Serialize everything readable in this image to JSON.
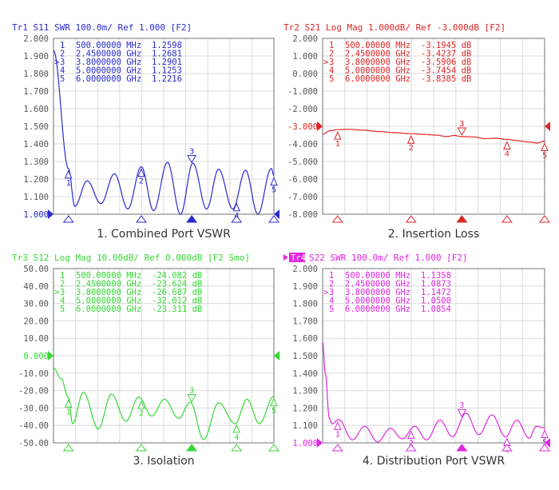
{
  "chart_data": [
    {
      "type": "line",
      "header": "Tr1 S11 SWR 100.0m/ Ref 1.000 [F2]",
      "trace_tag": "",
      "caption": "1.   Combined Port VSWR",
      "color": "#2a2ad0",
      "x_unit": "GHz",
      "xlim": [
        0.1,
        6.0
      ],
      "ylim": [
        1.0,
        2.0
      ],
      "ref_value": 1.0,
      "y_ticks": [
        "2.000",
        "1.900",
        "1.800",
        "1.700",
        "1.600",
        "1.500",
        "1.400",
        "1.300",
        "1.200",
        "1.100",
        "1.000"
      ],
      "highlight_tick": 10,
      "active_marker": 3,
      "markers": [
        {
          "n": "1",
          "freq": 0.5,
          "freq_label": "500.00000 MHz",
          "value_label": "1.2598"
        },
        {
          "n": "2",
          "freq": 2.45,
          "freq_label": "2.4500000 GHz",
          "value_label": "1.2681"
        },
        {
          "n": "3",
          "freq": 3.8,
          "freq_label": "3.8000000 GHz",
          "value_label": "1.2901"
        },
        {
          "n": "4",
          "freq": 5.0,
          "freq_label": "5.0000000 GHz",
          "value_label": "1.1253"
        },
        {
          "n": "5",
          "freq": 6.0,
          "freq_label": "6.0000000 GHz",
          "value_label": "1.2216"
        }
      ],
      "trace": [
        [
          0.1,
          1.93
        ],
        [
          0.5,
          1.26
        ],
        [
          0.67,
          1.045
        ],
        [
          1.0,
          1.19
        ],
        [
          1.37,
          1.06
        ],
        [
          1.73,
          1.23
        ],
        [
          2.09,
          1.03
        ],
        [
          2.45,
          1.27
        ],
        [
          2.78,
          1.02
        ],
        [
          3.15,
          1.295
        ],
        [
          3.5,
          1.0
        ],
        [
          3.83,
          1.29
        ],
        [
          4.2,
          1.03
        ],
        [
          4.52,
          1.256
        ],
        [
          4.9,
          1.03
        ],
        [
          5.24,
          1.25
        ],
        [
          5.57,
          1.0
        ],
        [
          5.93,
          1.26
        ],
        [
          6.0,
          1.22
        ]
      ]
    },
    {
      "type": "line",
      "header": "Tr2 S21 Log Mag 1.000dB/ Ref -3.000dB [F2]",
      "trace_tag": "",
      "caption": "2. Insertion Loss",
      "color": "#e02424",
      "x_unit": "GHz",
      "xlim": [
        0.1,
        6.0
      ],
      "ylim": [
        -8.0,
        2.0
      ],
      "ref_value": -3.0,
      "y_ticks": [
        "2.000",
        "1.000",
        "0.000",
        "-1.000",
        "-2.000",
        "-3.000",
        "-4.000",
        "-5.000",
        "-6.000",
        "-7.000",
        "-8.000"
      ],
      "highlight_tick": 5,
      "active_marker": 3,
      "markers": [
        {
          "n": "1",
          "freq": 0.5,
          "freq_label": "500.00000 MHz",
          "value_label": "-3.1945 dB"
        },
        {
          "n": "2",
          "freq": 2.45,
          "freq_label": "2.4500000 GHz",
          "value_label": "-3.4237 dB"
        },
        {
          "n": "3",
          "freq": 3.8,
          "freq_label": "3.8000000 GHz",
          "value_label": "-3.5906 dB"
        },
        {
          "n": "4",
          "freq": 5.0,
          "freq_label": "5.0000000 GHz",
          "value_label": "-3.7454 dB"
        },
        {
          "n": "5",
          "freq": 6.0,
          "freq_label": "6.0000000 GHz",
          "value_label": "-3.8385 dB"
        }
      ],
      "trace": [
        [
          0.1,
          -3.45
        ],
        [
          0.3,
          -3.25
        ],
        [
          0.5,
          -3.19
        ],
        [
          0.8,
          -3.17
        ],
        [
          1.2,
          -3.22
        ],
        [
          1.6,
          -3.3
        ],
        [
          2.0,
          -3.36
        ],
        [
          2.45,
          -3.42
        ],
        [
          2.8,
          -3.46
        ],
        [
          3.1,
          -3.5
        ],
        [
          3.4,
          -3.58
        ],
        [
          3.6,
          -3.52
        ],
        [
          3.8,
          -3.59
        ],
        [
          4.1,
          -3.6
        ],
        [
          4.4,
          -3.7
        ],
        [
          4.7,
          -3.68
        ],
        [
          5.0,
          -3.75
        ],
        [
          5.3,
          -3.82
        ],
        [
          5.6,
          -3.9
        ],
        [
          5.8,
          -3.95
        ],
        [
          6.0,
          -3.84
        ]
      ]
    },
    {
      "type": "line",
      "header": "Tr3 S12 Log Mag 10.00dB/ Ref 0.000dB [F2 Smo]",
      "trace_tag": "",
      "caption": "3. Isolation",
      "color": "#34d834",
      "x_unit": "GHz",
      "xlim": [
        0.1,
        6.0
      ],
      "ylim": [
        -50,
        50
      ],
      "ref_value": 0,
      "y_ticks": [
        "50.00",
        "40.00",
        "30.00",
        "20.00",
        "10.00",
        "0.000",
        "-10.00",
        "-20.00",
        "-30.00",
        "-40.00",
        "-50.00"
      ],
      "highlight_tick": 5,
      "active_marker": 3,
      "markers": [
        {
          "n": "1",
          "freq": 0.5,
          "freq_label": "500.00000 MHz",
          "value_label": "-24.082 dB"
        },
        {
          "n": "2",
          "freq": 2.45,
          "freq_label": "2.4500000 GHz",
          "value_label": "-23.624 dB"
        },
        {
          "n": "3",
          "freq": 3.8,
          "freq_label": "3.8000000 GHz",
          "value_label": "-26.687 dB"
        },
        {
          "n": "4",
          "freq": 5.0,
          "freq_label": "5.0000000 GHz",
          "value_label": "-32.012 dB"
        },
        {
          "n": "5",
          "freq": 6.0,
          "freq_label": "6.0000000 GHz",
          "value_label": "-23.311 dB"
        }
      ],
      "trace": [
        [
          0.1,
          -7
        ],
        [
          0.3,
          -13
        ],
        [
          0.5,
          -24
        ],
        [
          0.61,
          -39
        ],
        [
          0.9,
          -21
        ],
        [
          1.3,
          -42
        ],
        [
          1.65,
          -22
        ],
        [
          2.04,
          -37.6
        ],
        [
          2.38,
          -23.7
        ],
        [
          2.73,
          -34.6
        ],
        [
          3.07,
          -25
        ],
        [
          3.45,
          -36
        ],
        [
          3.76,
          -26.7
        ],
        [
          4.12,
          -48
        ],
        [
          4.52,
          -27
        ],
        [
          4.96,
          -39
        ],
        [
          5.28,
          -25
        ],
        [
          5.61,
          -39
        ],
        [
          6.0,
          -23.3
        ]
      ]
    },
    {
      "type": "line",
      "header": "S22 SWR 100.0m/ Ref 1.000 [F2]",
      "trace_tag": "Tr4",
      "caption": "4. Distribution  Port VSWR",
      "color": "#e026e0",
      "x_unit": "GHz",
      "xlim": [
        0.1,
        6.0
      ],
      "ylim": [
        1.0,
        2.0
      ],
      "ref_value": 1.0,
      "y_ticks": [
        "2.000",
        "1.900",
        "1.800",
        "1.700",
        "1.600",
        "1.500",
        "1.400",
        "1.300",
        "1.200",
        "1.100",
        "1.000"
      ],
      "highlight_tick": 10,
      "active_marker": 3,
      "markers": [
        {
          "n": "1",
          "freq": 0.5,
          "freq_label": "500.00000 MHz",
          "value_label": "1.1358"
        },
        {
          "n": "2",
          "freq": 2.45,
          "freq_label": "2.4500000 GHz",
          "value_label": "1.0873"
        },
        {
          "n": "3",
          "freq": 3.8,
          "freq_label": "3.8000000 GHz",
          "value_label": "1.1472"
        },
        {
          "n": "4",
          "freq": 5.0,
          "freq_label": "5.0000000 GHz",
          "value_label": "1.0500"
        },
        {
          "n": "5",
          "freq": 6.0,
          "freq_label": "6.0000000 GHz",
          "value_label": "1.0854"
        }
      ],
      "trace": [
        [
          0.1,
          1.58
        ],
        [
          0.17,
          1.4
        ],
        [
          0.28,
          1.14
        ],
        [
          0.35,
          1.11
        ],
        [
          0.53,
          1.133
        ],
        [
          0.89,
          1.017
        ],
        [
          1.22,
          1.095
        ],
        [
          1.56,
          1.005
        ],
        [
          1.9,
          1.083
        ],
        [
          2.22,
          1.023
        ],
        [
          2.55,
          1.095
        ],
        [
          2.86,
          1.017
        ],
        [
          3.22,
          1.13
        ],
        [
          3.55,
          1.035
        ],
        [
          3.91,
          1.17
        ],
        [
          4.25,
          1.047
        ],
        [
          4.6,
          1.16
        ],
        [
          4.96,
          1.035
        ],
        [
          5.26,
          1.13
        ],
        [
          5.59,
          1.027
        ],
        [
          5.78,
          1.095
        ],
        [
          6.0,
          1.085
        ]
      ]
    }
  ]
}
